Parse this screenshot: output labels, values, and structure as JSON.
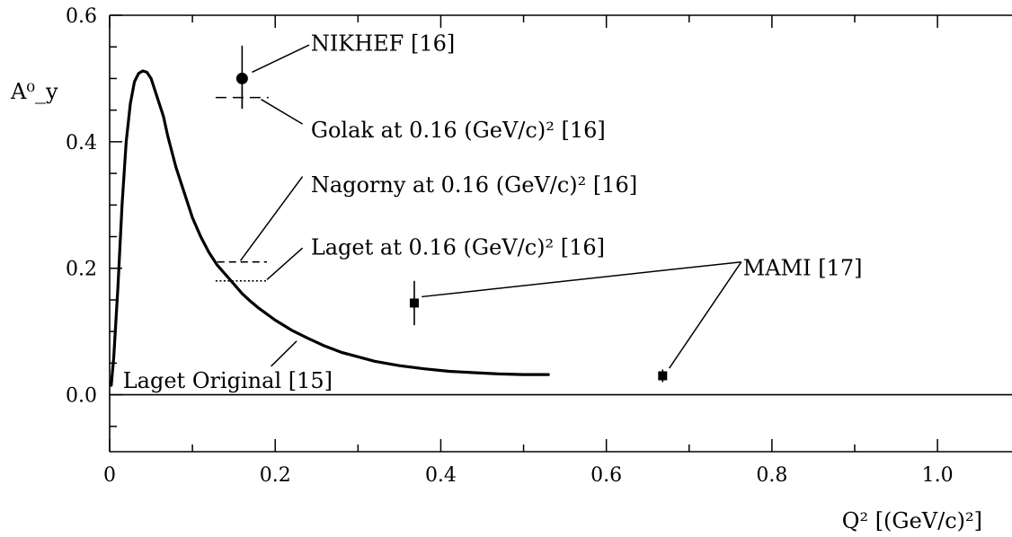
{
  "chart_data": {
    "type": "line",
    "title": "",
    "xlabel": "Q² [(GeV/c)²]",
    "ylabel": "A⁰_y",
    "xlim": [
      0,
      1.09
    ],
    "ylim": [
      -0.09,
      0.6
    ],
    "x_ticks": [
      0,
      0.2,
      0.4,
      0.6,
      0.8,
      1.0
    ],
    "x_tick_labels": [
      "0",
      "0.2",
      "0.4",
      "0.6",
      "0.8",
      "1.0"
    ],
    "y_ticks": [
      0.0,
      0.2,
      0.4,
      0.6
    ],
    "y_tick_labels": [
      "0.0",
      "0.2",
      "0.4",
      "0.6"
    ],
    "zero_line": true,
    "grid": false,
    "series": [
      {
        "name": "Laget Original [15]",
        "kind": "line",
        "x": [
          0.002,
          0.005,
          0.01,
          0.015,
          0.02,
          0.025,
          0.03,
          0.035,
          0.04,
          0.045,
          0.05,
          0.055,
          0.06,
          0.065,
          0.07,
          0.08,
          0.09,
          0.1,
          0.11,
          0.12,
          0.13,
          0.14,
          0.15,
          0.16,
          0.17,
          0.18,
          0.2,
          0.22,
          0.24,
          0.26,
          0.28,
          0.3,
          0.32,
          0.35,
          0.38,
          0.41,
          0.44,
          0.47,
          0.5,
          0.53
        ],
        "y": [
          0.015,
          0.06,
          0.17,
          0.3,
          0.4,
          0.46,
          0.495,
          0.508,
          0.512,
          0.51,
          0.5,
          0.48,
          0.46,
          0.44,
          0.41,
          0.36,
          0.32,
          0.28,
          0.25,
          0.225,
          0.205,
          0.19,
          0.175,
          0.16,
          0.148,
          0.137,
          0.118,
          0.102,
          0.089,
          0.077,
          0.067,
          0.06,
          0.053,
          0.046,
          0.041,
          0.037,
          0.035,
          0.033,
          0.032,
          0.032
        ]
      },
      {
        "name": "NIKHEF [16]",
        "kind": "points",
        "marker": "circle",
        "points": [
          {
            "x": 0.16,
            "y": 0.5,
            "yerr_low": 0.048,
            "yerr_high": 0.052
          }
        ]
      },
      {
        "name": "MAMI [17]",
        "kind": "points",
        "marker": "square",
        "points": [
          {
            "x": 0.368,
            "y": 0.145,
            "yerr_low": 0.035,
            "yerr_high": 0.035
          },
          {
            "x": 0.668,
            "y": 0.03,
            "yerr_low": 0.01,
            "yerr_high": 0.01
          }
        ]
      },
      {
        "name": "Golak at 0.16 (GeV/c)² [16]",
        "kind": "cross",
        "x": 0.16,
        "y": 0.47,
        "x_span": [
          0.128,
          0.192
        ],
        "y_span": [
          0.453,
          0.487
        ],
        "dash": "dashed"
      },
      {
        "name": "Nagorny at 0.16 (GeV/c)² [16]",
        "kind": "hline",
        "y": 0.21,
        "x_span": [
          0.13,
          0.19
        ],
        "dash": "dashed"
      },
      {
        "name": "Laget at 0.16 (GeV/c)² [16]",
        "kind": "hline",
        "y": 0.18,
        "x_span": [
          0.128,
          0.19
        ],
        "dash": "dotted"
      }
    ],
    "annotations": [
      {
        "text": "NIKHEF [16]",
        "x": 0.243,
        "y": 0.555,
        "anchor": "start",
        "leaders": [
          {
            "from": [
              0.241,
              0.553
            ],
            "to": [
              0.172,
              0.51
            ]
          }
        ]
      },
      {
        "text": "Golak at 0.16 (GeV/c)² [16]",
        "x": 0.243,
        "y": 0.418,
        "anchor": "start",
        "leaders": [
          {
            "from": [
              0.233,
              0.428
            ],
            "to": [
              0.183,
              0.467
            ]
          }
        ]
      },
      {
        "text": "Nagorny at 0.16 (GeV/c)² [16]",
        "x": 0.243,
        "y": 0.332,
        "anchor": "start",
        "leaders": [
          {
            "from": [
              0.233,
              0.345
            ],
            "to": [
              0.158,
              0.212
            ]
          }
        ]
      },
      {
        "text": "Laget at 0.16 (GeV/c)² [16]",
        "x": 0.243,
        "y": 0.233,
        "anchor": "start",
        "leaders": [
          {
            "from": [
              0.233,
              0.232
            ],
            "to": [
              0.19,
              0.182
            ]
          }
        ]
      },
      {
        "text": "MAMI [17]",
        "x": 0.765,
        "y": 0.2,
        "anchor": "start",
        "leaders": [
          {
            "from": [
              0.763,
              0.21
            ],
            "to": [
              0.377,
              0.155
            ]
          },
          {
            "from": [
              0.763,
              0.21
            ],
            "to": [
              0.676,
              0.042
            ]
          }
        ]
      },
      {
        "text": "Laget Original [15]",
        "x": 0.016,
        "y": 0.022,
        "anchor": "start",
        "leaders": [
          {
            "from": [
              0.195,
              0.045
            ],
            "to": [
              0.226,
              0.085
            ]
          }
        ]
      }
    ],
    "colors": {
      "ink": "#000000",
      "background": "#ffffff"
    }
  }
}
